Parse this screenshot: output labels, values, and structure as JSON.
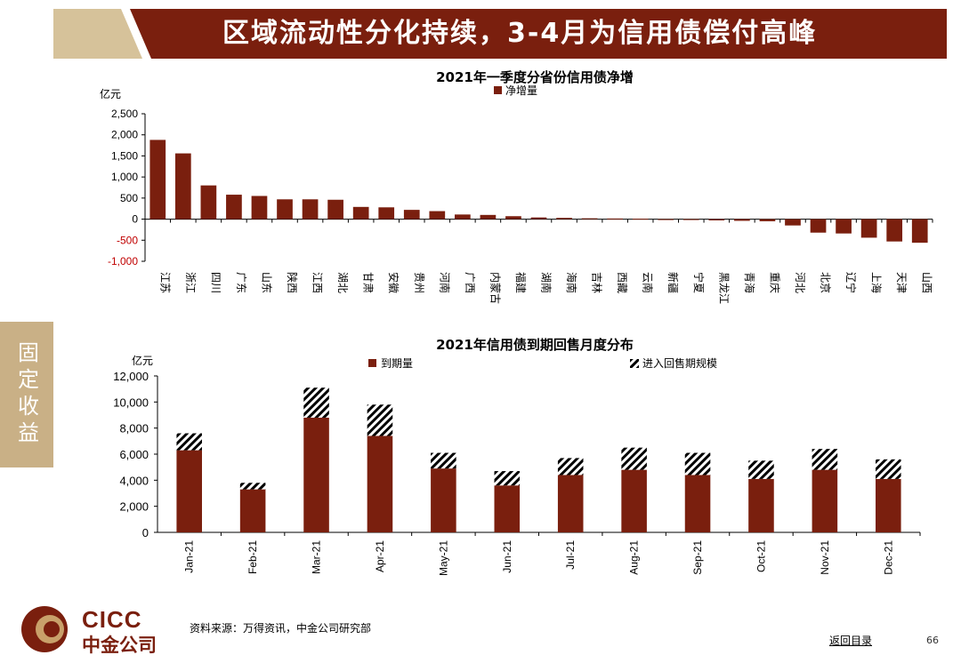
{
  "header": {
    "title": "区域流动性分化持续，3-4月为信用债偿付高峰"
  },
  "side_tab": {
    "label": "固定收益"
  },
  "footer": {
    "logo_en": "CICC",
    "logo_cn": "中金公司",
    "source": "资料来源：万得资讯，中金公司研究部",
    "back_link": "返回目录",
    "page_number": "66"
  },
  "colors": {
    "primary": "#7a1f0e",
    "tab": "#c9b086",
    "title_light": "#d6c29a"
  },
  "chart_data": [
    {
      "type": "bar",
      "title": "2021年一季度分省份信用债净增",
      "unit_label": "亿元",
      "categories": [
        "江苏",
        "浙江",
        "四川",
        "广东",
        "山东",
        "陕西",
        "江西",
        "湖北",
        "甘肃",
        "安徽",
        "贵州",
        "河南",
        "广西",
        "内蒙古",
        "福建",
        "湖南",
        "海南",
        "吉林",
        "西藏",
        "云南",
        "新疆",
        "宁夏",
        "黑龙江",
        "青海",
        "重庆",
        "河北",
        "北京",
        "辽宁",
        "上海",
        "天津",
        "山西"
      ],
      "series": [
        {
          "name": "净增量",
          "values": [
            1880,
            1560,
            800,
            580,
            550,
            470,
            470,
            460,
            290,
            280,
            220,
            190,
            110,
            100,
            70,
            40,
            30,
            20,
            15,
            10,
            -10,
            -20,
            -30,
            -40,
            -50,
            -150,
            -320,
            -340,
            -440,
            -530,
            -560
          ]
        }
      ],
      "ylim": [
        -1000,
        2500
      ],
      "yticks": [
        "-1,000",
        "-500",
        "0",
        "500",
        "1,000",
        "1,500",
        "2,000",
        "2,500"
      ],
      "ytick_values": [
        -1000,
        -500,
        0,
        500,
        1000,
        1500,
        2000,
        2500
      ]
    },
    {
      "type": "bar",
      "stacked": true,
      "title": "2021年信用债到期回售月度分布",
      "unit_label": "亿元",
      "categories": [
        "Jan-21",
        "Feb-21",
        "Mar-21",
        "Apr-21",
        "May-21",
        "Jun-21",
        "Jul-21",
        "Aug-21",
        "Sep-21",
        "Oct-21",
        "Nov-21",
        "Dec-21"
      ],
      "series": [
        {
          "name": "到期量",
          "values": [
            6300,
            3300,
            8800,
            7400,
            4900,
            3600,
            4400,
            4800,
            4400,
            4100,
            4800,
            4100
          ]
        },
        {
          "name": "进入回售期规模",
          "values": [
            1300,
            500,
            2300,
            2400,
            1200,
            1100,
            1300,
            1700,
            1700,
            1400,
            1600,
            1500
          ]
        }
      ],
      "ylim": [
        0,
        12000
      ],
      "yticks": [
        "0",
        "2,000",
        "4,000",
        "6,000",
        "8,000",
        "10,000",
        "12,000"
      ],
      "ytick_values": [
        0,
        2000,
        4000,
        6000,
        8000,
        10000,
        12000
      ]
    }
  ]
}
